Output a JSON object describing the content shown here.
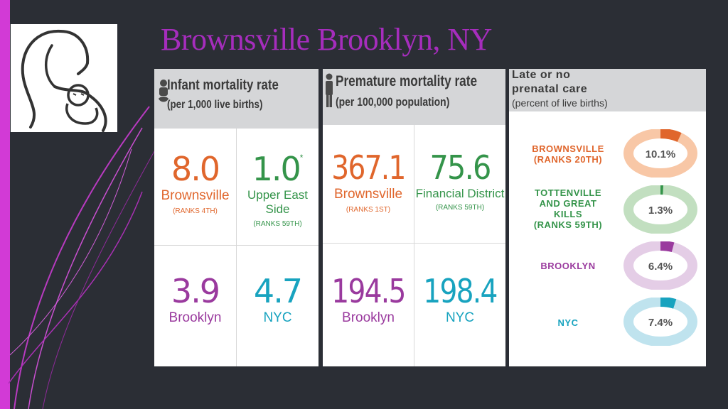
{
  "slide": {
    "title": "Brownsville Brooklyn, NY"
  },
  "colors": {
    "accent": "#d23ad6",
    "title": "#a62dbd",
    "orange": "#e0662c",
    "green": "#34944a",
    "purple": "#9a3a9e",
    "teal": "#18a3bf"
  },
  "logo": {
    "icon": "mother-and-baby-logo"
  },
  "infant": {
    "icon": "baby-icon",
    "title": "Infant mortality rate",
    "subtitle": "(per 1,000 live births)",
    "cells": [
      {
        "value": "8.0",
        "label": "Brownsville",
        "rank": "(RANKS 4TH)"
      },
      {
        "value": "1.0",
        "star": "*",
        "label": "Upper East Side",
        "rank": "(RANKS 59TH)"
      },
      {
        "value": "3.9",
        "label": "Brooklyn"
      },
      {
        "value": "4.7",
        "label": "NYC"
      }
    ]
  },
  "premature": {
    "icon": "person-icon",
    "title": "Premature mortality rate",
    "subtitle": "(per 100,000 population)",
    "cells": [
      {
        "value": "367.1",
        "label": "Brownsville",
        "rank": "(RANKS 1ST)"
      },
      {
        "value": "75.6",
        "label": "Financial District",
        "rank": "(RANKS 59TH)"
      },
      {
        "value": "194.5",
        "label": "Brooklyn"
      },
      {
        "value": "198.4",
        "label": "NYC"
      }
    ]
  },
  "prenatal": {
    "title_line1": "Late or no",
    "title_line2": "prenatal care",
    "subtitle": "(percent of live births)",
    "rows": [
      {
        "lines": [
          "BROWNSVILLE",
          "(RANKS 20TH)"
        ],
        "value": "10.1%",
        "percent": 10.1,
        "color": "#e0662c",
        "track": "#f8c7a6"
      },
      {
        "lines": [
          "TOTTENVILLE",
          "AND GREAT",
          "KILLS",
          "(RANKS 59TH)"
        ],
        "value": "1.3%",
        "percent": 1.3,
        "color": "#34944a",
        "track": "#c2dfc0"
      },
      {
        "lines": [
          "BROOKLYN"
        ],
        "value": "6.4%",
        "percent": 6.4,
        "color": "#9a3a9e",
        "track": "#e4cde6"
      },
      {
        "lines": [
          "NYC"
        ],
        "value": "7.4%",
        "percent": 7.4,
        "color": "#18a3bf",
        "track": "#bfe3ee"
      }
    ]
  }
}
